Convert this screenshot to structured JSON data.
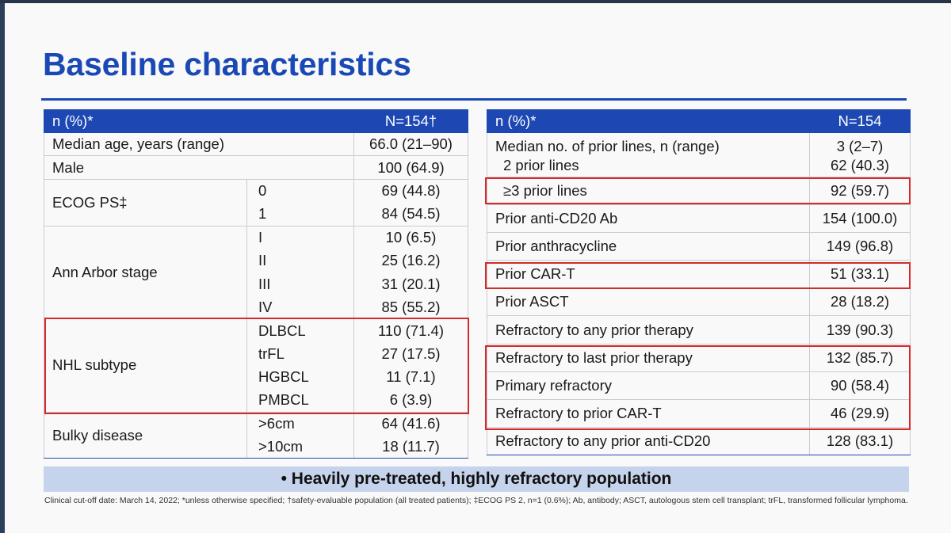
{
  "title": "Baseline characteristics",
  "left_table": {
    "header": {
      "label": "n (%)*",
      "value": "N=154†"
    },
    "rows": [
      {
        "label": "Median age, years (range)",
        "sub": "",
        "value": "66.0 (21–90)"
      },
      {
        "label": "Male",
        "sub": "",
        "value": "100 (64.9)"
      },
      {
        "label": "ECOG PS‡",
        "subs": [
          "0",
          "1"
        ],
        "values": [
          "69 (44.8)",
          "84 (54.5)"
        ]
      },
      {
        "label": "Ann Arbor stage",
        "subs": [
          "I",
          "II",
          "III",
          "IV"
        ],
        "values": [
          "10 (6.5)",
          "25 (16.2)",
          "31 (20.1)",
          "85 (55.2)"
        ]
      },
      {
        "label": "NHL subtype",
        "subs": [
          "DLBCL",
          "trFL",
          "HGBCL",
          "PMBCL"
        ],
        "values": [
          "110 (71.4)",
          "27 (17.5)",
          "11 (7.1)",
          "6 (3.9)"
        ]
      },
      {
        "label": "Bulky disease",
        "subs": [
          ">6cm",
          ">10cm"
        ],
        "values": [
          "64 (41.6)",
          "18 (11.7)"
        ]
      }
    ]
  },
  "right_table": {
    "header": {
      "label": "n (%)*",
      "value": "N=154"
    },
    "rows": [
      {
        "label": "Median no. of prior lines, n (range)",
        "value": "3 (2–7)"
      },
      {
        "label": "2 prior lines",
        "value": "62 (40.3)"
      },
      {
        "label": "≥3 prior lines",
        "value": "92 (59.7)"
      },
      {
        "label": "Prior anti-CD20 Ab",
        "value": "154 (100.0)"
      },
      {
        "label": "Prior anthracycline",
        "value": "149 (96.8)"
      },
      {
        "label": "Prior CAR-T",
        "value": "51 (33.1)"
      },
      {
        "label": "Prior ASCT",
        "value": "28 (18.2)"
      },
      {
        "label": "Refractory to any prior therapy",
        "value": "139 (90.3)"
      },
      {
        "label": "Refractory to last prior therapy",
        "value": "132 (85.7)"
      },
      {
        "label": "Primary refractory",
        "value": "90 (58.4)"
      },
      {
        "label": "Refractory to prior CAR-T",
        "value": "46 (29.9)"
      },
      {
        "label": "Refractory to any prior anti-CD20",
        "value": "128 (83.1)"
      }
    ]
  },
  "banner": "•  Heavily pre-treated, highly refractory population",
  "footnote": "Clinical cut-off date: March 14, 2022; *unless otherwise specified; †safety-evaluable population (all treated patients); ‡ECOG PS 2, n=1 (0.6%); Ab, antibody; ASCT, autologous stem cell transplant; trFL, transformed follicular lymphoma.",
  "colors": {
    "brand_blue": "#1d48b3",
    "highlight_red": "#d32a2a",
    "banner_bg": "#c5d3ec"
  }
}
